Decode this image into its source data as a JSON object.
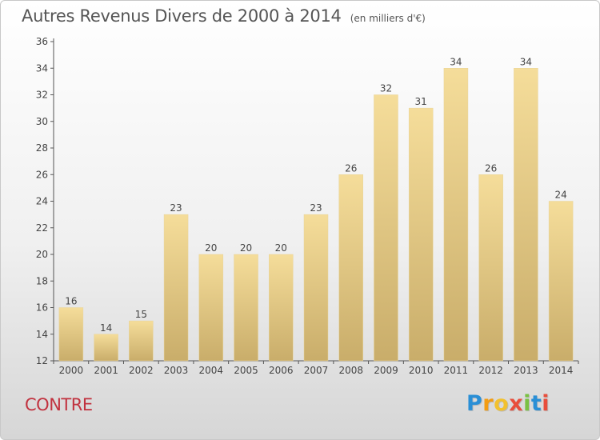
{
  "header": {
    "title": "Autres Revenus Divers de 2000 à 2014",
    "subtitle": "(en milliers d'€)"
  },
  "footer": {
    "commune": "CONTRE",
    "logo_letters": [
      "P",
      "r",
      "o",
      "x",
      "i",
      "t",
      "i"
    ],
    "logo_colors": [
      "#2a8fd6",
      "#f39c12",
      "#f2c12e",
      "#e84e3c",
      "#7ac143",
      "#2a8fd6",
      "#e84e3c"
    ]
  },
  "colors": {
    "bar_top": "#f5dd9a",
    "bar_bottom": "#c9ad6a",
    "commune": "#c1323f"
  },
  "chart_data": {
    "type": "bar",
    "title": "Autres Revenus Divers de 2000 à 2014",
    "subtitle": "(en milliers d'€)",
    "categories": [
      "2000",
      "2001",
      "2002",
      "2003",
      "2004",
      "2005",
      "2006",
      "2007",
      "2008",
      "2009",
      "2010",
      "2011",
      "2012",
      "2013",
      "2014"
    ],
    "values": [
      16,
      14,
      15,
      23,
      20,
      20,
      20,
      23,
      26,
      32,
      31,
      34,
      26,
      34,
      24
    ],
    "ylim": [
      12,
      36
    ],
    "yticks": [
      12,
      14,
      16,
      18,
      20,
      22,
      24,
      26,
      28,
      30,
      32,
      34,
      36
    ],
    "grid": false,
    "data_labels": true
  }
}
